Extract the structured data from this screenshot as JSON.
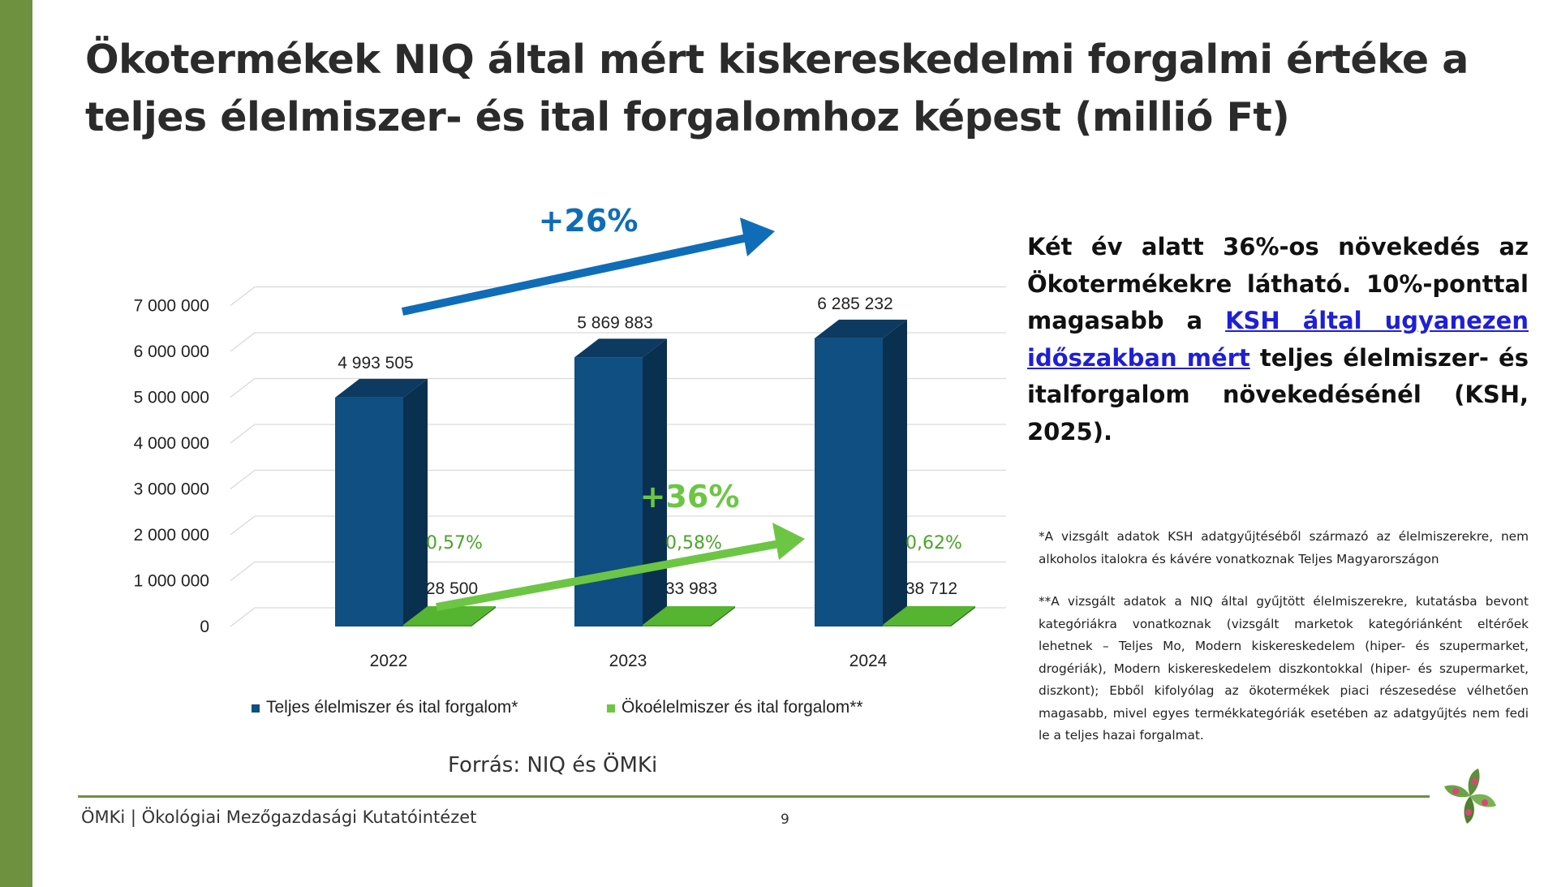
{
  "slide": {
    "title": "Ökotermékek NIQ által mért kiskereskedelmi forgalmi értéke a teljes élelmiszer- és ital forgalomhoz képest (millió Ft)",
    "side_text": {
      "part1": "Két év alatt 36%-os növekedés az Ökotermékekre látható. 10%-ponttal magasabb a ",
      "link": "KSH által ugyanezen időszakban mért",
      "part2": " teljes élelmiszer- és italforgalom növekedésénél (KSH, 2025)."
    },
    "note1": "*A vizsgált adatok KSH adatgyűjtéséből származó az élelmiszerekre, nem alkoholos italokra és kávére vonatkoznak Teljes Magyarországon",
    "note2": "**A vizsgált adatok a NIQ által gyűjtött élelmiszerekre, kutatásba bevont kategóriákra vonatkoznak (vizsgált marketok kategóriánként eltérőek lehetnek – Teljes Mo, Modern kiskereskedelem (hiper- és szupermarket, drogériák), Modern kiskereskedelem diszkontokkal (hiper- és szupermarket, diszkont); Ebből kifolyólag az ökotermékek piaci részesedése vélhetően magasabb, mivel egyes termékkategóriák esetében az adatgyűjtés nem fedi le a teljes hazai forgalmat.",
    "source": "Forrás: NIQ és ÖMKi",
    "footer": "ÖMKi | Ökológiai Mezőgazdasági Kutatóintézet",
    "page_number": "9"
  },
  "chart_data": {
    "type": "bar",
    "categories": [
      "2022",
      "2023",
      "2024"
    ],
    "series": [
      {
        "name": "Teljes élelmiszer és ital forgalom*",
        "values": [
          4993505,
          5869883,
          6285232
        ],
        "labels": [
          "4 993 505",
          "5 869 883",
          "6 285 232"
        ],
        "color": "#0f4f82"
      },
      {
        "name": "Ökoélelmiszer és ital forgalom**",
        "values": [
          28500,
          33983,
          38712
        ],
        "labels": [
          "28 500",
          "33 983",
          "38 712"
        ],
        "color": "#4a9e2a"
      }
    ],
    "share_labels": [
      "0,57%",
      "0,58%",
      "0,62%"
    ],
    "growth_annotations": [
      {
        "text": "+26%",
        "color": "#0f6db8"
      },
      {
        "text": "+36%",
        "color": "#6cc644"
      }
    ],
    "y_ticks": [
      "0",
      "1 000 000",
      "2 000 000",
      "3 000 000",
      "4 000 000",
      "5 000 000",
      "6 000 000",
      "7 000 000"
    ],
    "ylim": [
      0,
      7000000
    ],
    "grid": true,
    "legend": "bottom",
    "title": "",
    "xlabel": "",
    "ylabel": ""
  }
}
